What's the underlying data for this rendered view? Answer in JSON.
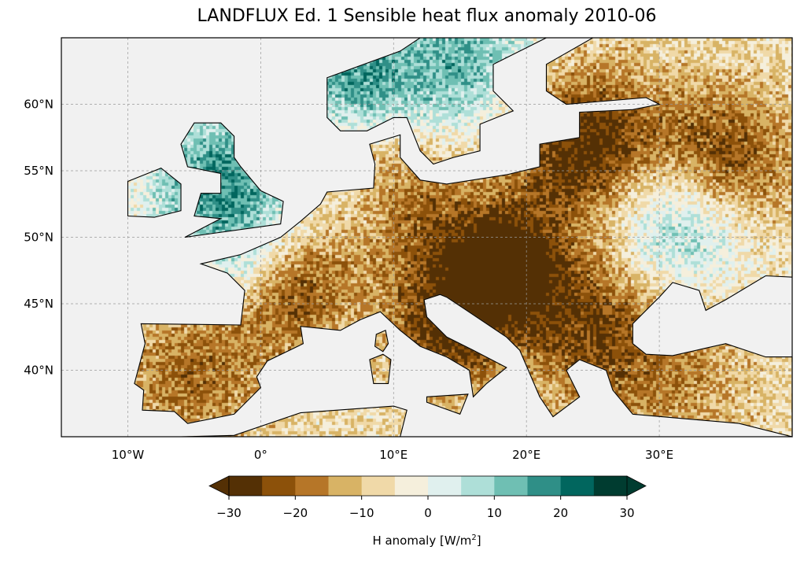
{
  "title": "LANDFLUX Ed. 1 Sensible heat flux anomaly 2010-06",
  "map": {
    "extent_lon": [
      -15,
      40
    ],
    "extent_lat": [
      35,
      65
    ],
    "lon_ticks": [
      {
        "value": -10,
        "label": "10°W"
      },
      {
        "value": 0,
        "label": "0°"
      },
      {
        "value": 10,
        "label": "10°E"
      },
      {
        "value": 20,
        "label": "20°E"
      },
      {
        "value": 30,
        "label": "30°E"
      }
    ],
    "lat_ticks": [
      {
        "value": 60,
        "label": "60°N"
      },
      {
        "value": 55,
        "label": "55°N"
      },
      {
        "value": 50,
        "label": "50°N"
      },
      {
        "value": 45,
        "label": "45°N"
      },
      {
        "value": 40,
        "label": "40°N"
      }
    ],
    "ocean_color": "#f1f1f1"
  },
  "colorbar": {
    "label_main": "H anomaly [W/m",
    "label_sup": "2",
    "label_end": "]",
    "range": [
      -30,
      30
    ],
    "bin_width": 5,
    "extend": "both",
    "colors": [
      "#543005",
      "#8c510a",
      "#b67628",
      "#d8b365",
      "#f0d9a8",
      "#f5efdc",
      "#e0f0ee",
      "#aedfd8",
      "#6fbfb3",
      "#2f8f87",
      "#01665e",
      "#003c30"
    ],
    "ticks": [
      {
        "value": -30,
        "label": "−30"
      },
      {
        "value": -20,
        "label": "−20"
      },
      {
        "value": -10,
        "label": "−10"
      },
      {
        "value": 0,
        "label": "0"
      },
      {
        "value": 10,
        "label": "10"
      },
      {
        "value": 20,
        "label": "20"
      },
      {
        "value": 30,
        "label": "30"
      }
    ]
  }
}
